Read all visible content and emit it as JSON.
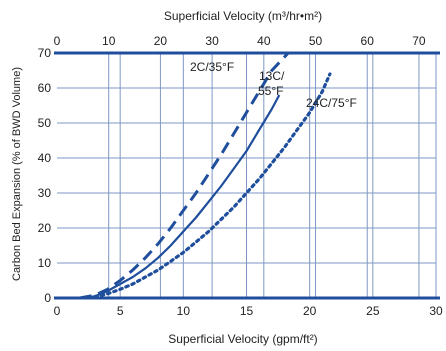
{
  "chart_data": {
    "type": "line",
    "title": "",
    "xlabel": "Superficial Velocity (gpm/ft²)",
    "xlabel_top": "Superficial Velocity (m³/hr•m²)",
    "ylabel": "Carbon Bed Expansion (% of BWD Volume)",
    "xlim": [
      0,
      30
    ],
    "ylim": [
      0,
      70
    ],
    "xlim_top": [
      0,
      73.3
    ],
    "xticks": [
      "0",
      "5",
      "10",
      "15",
      "20",
      "25",
      "30"
    ],
    "xticks_top": [
      "0",
      "10",
      "20",
      "30",
      "40",
      "50",
      "60",
      "70"
    ],
    "yticks": [
      "0",
      "10",
      "20",
      "30",
      "40",
      "50",
      "60",
      "70"
    ],
    "grid": true,
    "colors": {
      "series": "#1f4f9c",
      "grid": "#7f97c4",
      "axis": "#1f4f9c"
    },
    "series": [
      {
        "name": "2C/35°F",
        "style": "dashed",
        "x": [
          1.8,
          3,
          4,
          5,
          6,
          7,
          8,
          9,
          10,
          11,
          12,
          13,
          14,
          15,
          16,
          17,
          18.3
        ],
        "y": [
          0,
          0.8,
          2.5,
          5,
          8,
          11.5,
          15.5,
          20,
          25,
          30,
          35.5,
          41,
          47,
          53,
          59,
          65,
          70
        ]
      },
      {
        "name": "13C/55°F",
        "style": "solid",
        "x": [
          2,
          3,
          4,
          5,
          6,
          7,
          8,
          9,
          10,
          11,
          12,
          13,
          14,
          15,
          16,
          17,
          17.6
        ],
        "y": [
          0,
          0.5,
          2,
          4,
          6,
          8.5,
          11.5,
          15,
          19,
          23,
          27.5,
          32,
          37,
          42,
          48,
          54,
          58
        ]
      },
      {
        "name": "24C/75°F",
        "style": "dotted",
        "x": [
          2.5,
          4,
          5,
          6,
          7,
          8,
          9,
          10,
          11,
          12,
          13,
          14,
          15,
          16,
          17,
          18,
          19,
          20,
          21,
          21.6
        ],
        "y": [
          0,
          1.2,
          2.5,
          4,
          6,
          8,
          10.5,
          13,
          16,
          19,
          22.5,
          26,
          30,
          34,
          38.5,
          43,
          48,
          53,
          59,
          64
        ]
      }
    ],
    "annotations": [
      "2C/35°F",
      "13C/",
      "55°F",
      "24C/75°F"
    ]
  }
}
